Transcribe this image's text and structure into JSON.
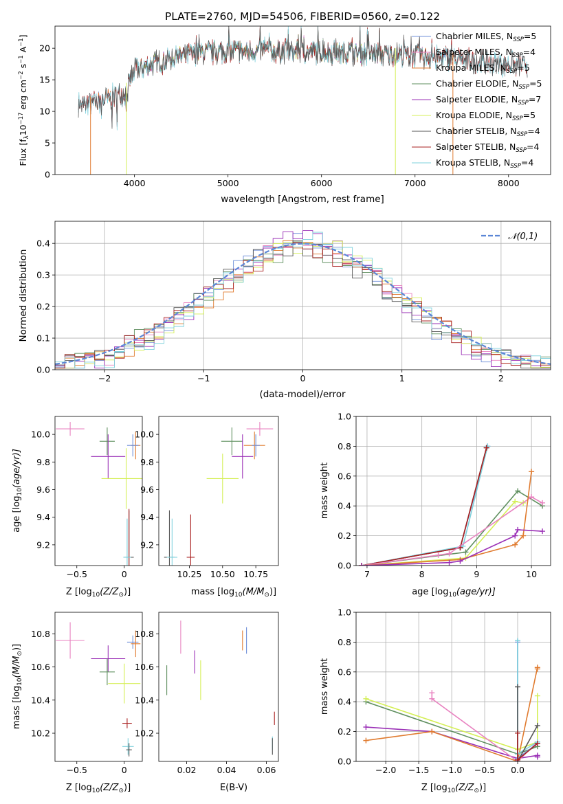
{
  "title": "PLATE=2760, MJD=54506, FIBERID=0560, z=0.122",
  "colors": {
    "Chabrier MILES": "#6f8fd8",
    "Salpeter MILES": "#e882c0",
    "Kroupa MILES": "#e07b2f",
    "Chabrier ELODIE": "#5f8f5f",
    "Salpeter ELODIE": "#9a2fb6",
    "Kroupa ELODIE": "#d4ef55",
    "Chabrier STELIB": "#555555",
    "Salpeter STELIB": "#aa2222",
    "Kroupa STELIB": "#7ed0dc",
    "normal": "#5b86d6"
  },
  "chart_data": [
    {
      "id": "spectrum",
      "type": "line",
      "xlabel": "wavelength [Angstrom, rest frame]",
      "ylabel": "Flux [f",
      "ylabel_sub": "λ",
      "ylabel_rest": "10",
      "ylabel_sup1": "−17",
      "ylabel_rest2": " erg cm",
      "ylabel_sup2": "−2",
      "ylabel_rest3": " s",
      "ylabel_sup3": "−1",
      "ylabel_rest4": " A",
      "ylabel_sup4": "−1",
      "ylabel_end": "]",
      "xlim": [
        3150,
        8450
      ],
      "ylim": [
        0,
        23.5
      ],
      "xticks": [
        4000,
        5000,
        6000,
        7000,
        8000
      ],
      "yticks": [
        0,
        5,
        10,
        15,
        20
      ],
      "legend": [
        {
          "name": "Chabrier MILES",
          "ssp": "5"
        },
        {
          "name": "Salpeter MILES",
          "ssp": "4"
        },
        {
          "name": "Kroupa MILES",
          "ssp": "5"
        },
        {
          "name": "Chabrier ELODIE",
          "ssp": "5"
        },
        {
          "name": "Salpeter ELODIE",
          "ssp": "7"
        },
        {
          "name": "Kroupa ELODIE",
          "ssp": "5"
        },
        {
          "name": "Chabrier STELIB",
          "ssp": "4"
        },
        {
          "name": "Salpeter STELIB",
          "ssp": "4"
        },
        {
          "name": "Kroupa STELIB",
          "ssp": "4"
        }
      ],
      "legend_text_prefix": ", N",
      "legend_text_sub": "SSP",
      "legend_text_eq": "=",
      "continuum_x": [
        3400,
        3600,
        3800,
        3900,
        4000,
        4200,
        4400,
        4600,
        4800,
        5000,
        5200,
        5400,
        5600,
        5800,
        6000,
        6200,
        6400,
        6600,
        6800,
        7000,
        7200,
        7400,
        7600,
        7800,
        8000,
        8200
      ],
      "continuum_y": [
        11.0,
        11.5,
        12.5,
        13.0,
        16.5,
        17.5,
        18.5,
        19.0,
        19.3,
        19.5,
        19.5,
        19.6,
        19.5,
        19.5,
        19.4,
        19.3,
        19.2,
        19.1,
        19.0,
        18.8,
        18.6,
        18.3,
        18.0,
        17.7,
        17.5,
        17.3
      ],
      "spectrum_range": [
        3400,
        8200
      ],
      "dropouts": [
        {
          "x": 3530,
          "series": "Kroupa MILES"
        },
        {
          "x": 3915,
          "series": "Kroupa ELODIE"
        },
        {
          "x": 6790,
          "series": "Kroupa ELODIE"
        },
        {
          "x": 7405,
          "series": "Kroupa MILES"
        }
      ]
    },
    {
      "id": "residuals",
      "type": "step",
      "xlabel": "(data-model)/error",
      "ylabel": "Normed distribution",
      "xlim": [
        -2.5,
        2.5
      ],
      "ylim": [
        0,
        0.47
      ],
      "xticks": [
        -2,
        -1,
        0,
        1,
        2
      ],
      "yticks": [
        0.0,
        0.1,
        0.2,
        0.3,
        0.4
      ],
      "legend_label": "𝒩(0,1)",
      "bin_width": 0.1
    },
    {
      "id": "age_vs_Z",
      "type": "errorbar",
      "xlabel": "Z [log",
      "xlabel_sub": "10",
      "xlabel_rest": "(Z/Z",
      "xlabel_sub2": "⊙",
      "xlabel_end": ")]",
      "ylabel": "age  [log",
      "ylabel_sub": "10",
      "ylabel_rest": "(age/yr)]",
      "xlim": [
        -0.73,
        0.19
      ],
      "ylim": [
        9.05,
        10.13
      ],
      "xticks": [
        -0.5,
        0.0
      ],
      "yticks": [
        9.2,
        9.4,
        9.6,
        9.8,
        10.0
      ],
      "points": [
        {
          "series": "Salpeter MILES",
          "x": -0.57,
          "y": 10.04,
          "xerr": 0.15,
          "yerr": 0.05
        },
        {
          "series": "Chabrier ELODIE",
          "x": -0.18,
          "y": 9.95,
          "xerr": 0.08,
          "yerr": 0.1
        },
        {
          "series": "Salpeter ELODIE",
          "x": -0.17,
          "y": 9.84,
          "xerr": 0.18,
          "yerr": 0.16
        },
        {
          "series": "Kroupa MILES",
          "x": 0.12,
          "y": 9.92,
          "xerr": 0.05,
          "yerr": 0.1
        },
        {
          "series": "Chabrier MILES",
          "x": 0.09,
          "y": 9.92,
          "xerr": 0.06,
          "yerr": 0.08
        },
        {
          "series": "Kroupa ELODIE",
          "x": 0.02,
          "y": 9.68,
          "xerr": 0.26,
          "yerr": 0.22
        },
        {
          "series": "Chabrier STELIB",
          "x": 0.05,
          "y": 9.11,
          "xerr": 0.05,
          "yerr": 0.34
        },
        {
          "series": "Salpeter STELIB",
          "x": 0.05,
          "y": 9.11,
          "xerr": 0.01,
          "yerr": 0.35
        },
        {
          "series": "Kroupa STELIB",
          "x": 0.03,
          "y": 9.11,
          "xerr": 0.04,
          "yerr": 0.28
        }
      ]
    },
    {
      "id": "age_vs_mass",
      "type": "errorbar",
      "xlabel": "mass [log",
      "xlabel_sub": "10",
      "xlabel_rest": "(M/M",
      "xlabel_sub2": "⊙",
      "xlabel_end": ")]",
      "xlim": [
        10.02,
        10.92
      ],
      "ylim": [
        9.05,
        10.13
      ],
      "xticks": [
        10.25,
        10.5,
        10.75
      ],
      "xtick_labels": [
        "10.25",
        "10.50",
        "10.75"
      ],
      "yticks": [
        9.2,
        9.4,
        9.6,
        9.8,
        10.0
      ],
      "points": [
        {
          "series": "Salpeter MILES",
          "x": 10.78,
          "y": 10.04,
          "xerr": 0.1,
          "yerr": 0.05
        },
        {
          "series": "Chabrier ELODIE",
          "x": 10.57,
          "y": 9.95,
          "xerr": 0.08,
          "yerr": 0.1
        },
        {
          "series": "Salpeter ELODIE",
          "x": 10.65,
          "y": 9.84,
          "xerr": 0.08,
          "yerr": 0.16
        },
        {
          "series": "Kroupa MILES",
          "x": 10.74,
          "y": 9.92,
          "xerr": 0.08,
          "yerr": 0.1
        },
        {
          "series": "Chabrier MILES",
          "x": 10.75,
          "y": 9.92,
          "xerr": 0.03,
          "yerr": 0.08
        },
        {
          "series": "Kroupa ELODIE",
          "x": 10.5,
          "y": 9.68,
          "xerr": 0.12,
          "yerr": 0.18
        },
        {
          "series": "Chabrier STELIB",
          "x": 10.1,
          "y": 9.11,
          "xerr": 0.04,
          "yerr": 0.34
        },
        {
          "series": "Salpeter STELIB",
          "x": 10.26,
          "y": 9.11,
          "xerr": 0.03,
          "yerr": 0.31
        },
        {
          "series": "Kroupa STELIB",
          "x": 10.12,
          "y": 9.11,
          "xerr": 0.04,
          "yerr": 0.28
        }
      ]
    },
    {
      "id": "weight_vs_age",
      "type": "line",
      "xlabel": "age  [log",
      "xlabel_sub": "10",
      "xlabel_rest": "(age/yr)]",
      "ylabel": "mass weight",
      "xlim": [
        6.8,
        10.35
      ],
      "ylim": [
        0,
        1.0
      ],
      "xticks": [
        7,
        8,
        9,
        10
      ],
      "yticks": [
        0.0,
        0.2,
        0.4,
        0.6,
        0.8,
        1.0
      ],
      "series": [
        {
          "name": "Chabrier MILES",
          "x": [
            6.9,
            8.7,
            9.2
          ],
          "y": [
            0.0,
            0.12,
            0.8
          ]
        },
        {
          "name": "Kroupa STELIB",
          "x": [
            6.9,
            8.75,
            9.2
          ],
          "y": [
            0.0,
            0.13,
            0.8
          ]
        },
        {
          "name": "Chabrier STELIB",
          "x": [
            6.9,
            8.7,
            9.18
          ],
          "y": [
            0.0,
            0.12,
            0.79
          ]
        },
        {
          "name": "Salpeter STELIB",
          "x": [
            6.9,
            8.7,
            9.18
          ],
          "y": [
            0.0,
            0.12,
            0.79
          ]
        },
        {
          "name": "Chabrier ELODIE",
          "x": [
            6.9,
            8.8,
            9.75,
            10.2
          ],
          "y": [
            0.0,
            0.09,
            0.5,
            0.4
          ]
        },
        {
          "name": "Kroupa ELODIE",
          "x": [
            6.9,
            8.8,
            9.7,
            9.85
          ],
          "y": [
            0.0,
            0.05,
            0.43,
            0.42
          ]
        },
        {
          "name": "Salpeter MILES",
          "x": [
            6.9,
            8.3,
            8.5,
            10.0,
            10.2
          ],
          "y": [
            0.0,
            0.07,
            0.08,
            0.46,
            0.42
          ]
        },
        {
          "name": "Kroupa MILES",
          "x": [
            6.9,
            8.7,
            9.7,
            9.85,
            10.0
          ],
          "y": [
            0.0,
            0.04,
            0.14,
            0.2,
            0.63
          ]
        },
        {
          "name": "Salpeter ELODIE",
          "x": [
            6.9,
            8.5,
            8.7,
            9.7,
            9.75,
            10.2
          ],
          "y": [
            0.0,
            0.02,
            0.03,
            0.2,
            0.24,
            0.23
          ]
        }
      ]
    },
    {
      "id": "mass_vs_Z",
      "type": "errorbar",
      "xlabel": "Z [log",
      "xlabel_sub": "10",
      "xlabel_rest": "(Z/Z",
      "xlabel_sub2": "⊙",
      "xlabel_end": ")]",
      "ylabel": "mass [log",
      "ylabel_sub": "10",
      "ylabel_rest": "(M/M",
      "ylabel_sub2": "⊙",
      "ylabel_end": ")]",
      "xlim": [
        -0.73,
        0.19
      ],
      "ylim": [
        10.03,
        10.93
      ],
      "xticks": [
        -0.5,
        0.0
      ],
      "yticks": [
        10.2,
        10.4,
        10.6,
        10.8
      ],
      "points": [
        {
          "series": "Salpeter MILES",
          "x": -0.57,
          "y": 10.76,
          "xerr": 0.15,
          "yerr": 0.11
        },
        {
          "series": "Chabrier MILES",
          "x": 0.09,
          "y": 10.75,
          "xerr": 0.06,
          "yerr": 0.04
        },
        {
          "series": "Kroupa MILES",
          "x": 0.12,
          "y": 10.74,
          "xerr": 0.05,
          "yerr": 0.08
        },
        {
          "series": "Salpeter ELODIE",
          "x": -0.17,
          "y": 10.65,
          "xerr": 0.18,
          "yerr": 0.08
        },
        {
          "series": "Chabrier ELODIE",
          "x": -0.18,
          "y": 10.57,
          "xerr": 0.08,
          "yerr": 0.08
        },
        {
          "series": "Kroupa ELODIE",
          "x": 0.0,
          "y": 10.5,
          "xerr": 0.17,
          "yerr": 0.12
        },
        {
          "series": "Salpeter STELIB",
          "x": 0.03,
          "y": 10.26,
          "xerr": 0.05,
          "yerr": 0.03
        },
        {
          "series": "Kroupa STELIB",
          "x": 0.04,
          "y": 10.12,
          "xerr": 0.06,
          "yerr": 0.05
        },
        {
          "series": "Chabrier STELIB",
          "x": 0.05,
          "y": 10.1,
          "xerr": 0.03,
          "yerr": 0.04
        }
      ]
    },
    {
      "id": "mass_vs_ebv",
      "type": "errorbar",
      "xlabel": "E(B-V)",
      "xlim": [
        0.006,
        0.066
      ],
      "ylim": [
        10.03,
        10.93
      ],
      "xticks": [
        0.02,
        0.04,
        0.06
      ],
      "xtick_labels": [
        "0.02",
        "0.04",
        "0.06"
      ],
      "yticks": [
        10.2,
        10.4,
        10.6,
        10.8
      ],
      "points": [
        {
          "series": "Salpeter MILES",
          "x": 0.017,
          "y": 10.78,
          "xerr": 0,
          "yerr": 0.1
        },
        {
          "series": "Chabrier MILES",
          "x": 0.05,
          "y": 10.76,
          "xerr": 0,
          "yerr": 0.08
        },
        {
          "series": "Kroupa MILES",
          "x": 0.048,
          "y": 10.76,
          "xerr": 0,
          "yerr": 0.06
        },
        {
          "series": "Salpeter ELODIE",
          "x": 0.024,
          "y": 10.63,
          "xerr": 0,
          "yerr": 0.07
        },
        {
          "series": "Chabrier ELODIE",
          "x": 0.01,
          "y": 10.52,
          "xerr": 0,
          "yerr": 0.09
        },
        {
          "series": "Kroupa ELODIE",
          "x": 0.027,
          "y": 10.52,
          "xerr": 0,
          "yerr": 0.12
        },
        {
          "series": "Salpeter STELIB",
          "x": 0.064,
          "y": 10.29,
          "xerr": 0,
          "yerr": 0.04
        },
        {
          "series": "Kroupa STELIB",
          "x": 0.063,
          "y": 10.14,
          "xerr": 0,
          "yerr": 0.04
        },
        {
          "series": "Chabrier STELIB",
          "x": 0.063,
          "y": 10.12,
          "xerr": 0,
          "yerr": 0.05
        }
      ]
    },
    {
      "id": "weight_vs_Z",
      "type": "line",
      "xlabel": "Z [log",
      "xlabel_sub": "10",
      "xlabel_rest": "(Z/Z",
      "xlabel_sub2": "⊙",
      "xlabel_end": ")]",
      "ylabel": "mass weight",
      "xlim": [
        -2.45,
        0.5
      ],
      "ylim": [
        0,
        1.0
      ],
      "xticks": [
        -2.0,
        -1.5,
        -1.0,
        -0.5,
        0.0
      ],
      "xtick_labels": [
        "−2.0",
        "−1.5",
        "−1.0",
        "−0.5",
        "0.0"
      ],
      "yticks": [
        0.0,
        0.2,
        0.4,
        0.6,
        0.8,
        1.0
      ],
      "series": [
        {
          "name": "Chabrier ELODIE",
          "x": [
            -2.3,
            0.0,
            0.3
          ],
          "y": [
            0.4,
            0.05,
            0.1
          ]
        },
        {
          "name": "Kroupa ELODIE",
          "x": [
            -2.3,
            0.0,
            0.3,
            0.3
          ],
          "y": [
            0.42,
            0.08,
            0.13,
            0.44
          ]
        },
        {
          "name": "Salpeter ELODIE",
          "x": [
            -2.3,
            -1.3,
            0.0,
            0.3,
            0.3
          ],
          "y": [
            0.23,
            0.2,
            0.02,
            0.04,
            0.03
          ]
        },
        {
          "name": "Kroupa MILES",
          "x": [
            -2.3,
            -1.3,
            0.0,
            0.3,
            0.3
          ],
          "y": [
            0.14,
            0.2,
            0.0,
            0.63,
            0.62
          ]
        },
        {
          "name": "Salpeter MILES",
          "x": [
            -1.3,
            -1.3,
            0.0,
            0.3
          ],
          "y": [
            0.46,
            0.42,
            0.0,
            0.13
          ]
        },
        {
          "name": "Chabrier MILES",
          "x": [
            0.0,
            0.0,
            0.3
          ],
          "y": [
            0.8,
            0.02,
            0.12
          ]
        },
        {
          "name": "Kroupa STELIB",
          "x": [
            0.0,
            0.0,
            0.3
          ],
          "y": [
            0.81,
            0.05,
            0.13
          ]
        },
        {
          "name": "Chabrier STELIB",
          "x": [
            0.0,
            0.0,
            0.3
          ],
          "y": [
            0.5,
            0.0,
            0.24
          ]
        },
        {
          "name": "Salpeter STELIB",
          "x": [
            0.0,
            0.0,
            0.3
          ],
          "y": [
            0.19,
            0.01,
            0.12
          ]
        }
      ]
    }
  ]
}
